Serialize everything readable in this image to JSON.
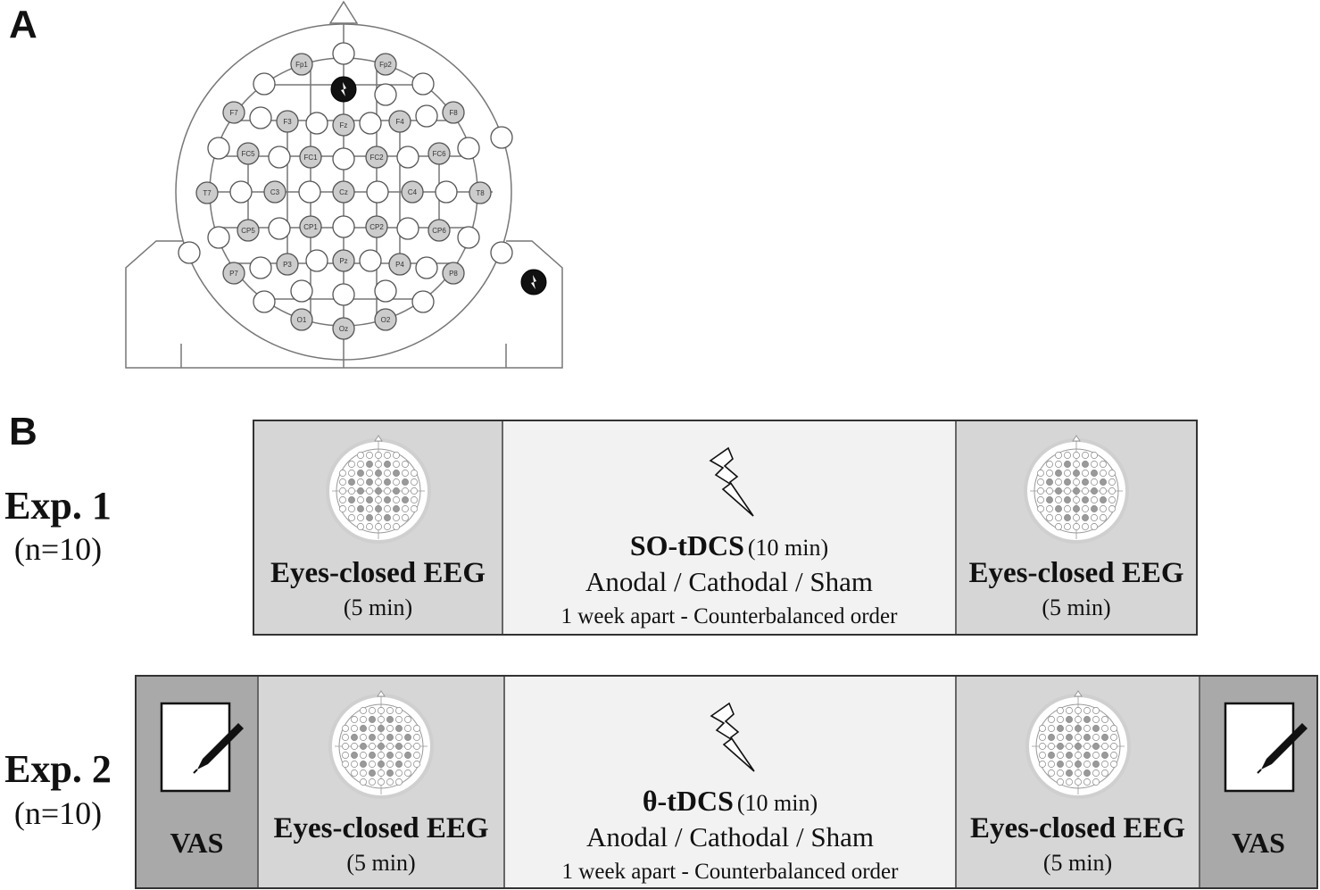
{
  "panel_a": {
    "label": "A",
    "electrodes": [
      "Fp1",
      "Fp2",
      "F7",
      "F3",
      "Fz",
      "F4",
      "F8",
      "FC5",
      "FC1",
      "FC2",
      "FC6",
      "T7",
      "C3",
      "Cz",
      "C4",
      "T8",
      "CP5",
      "CP1",
      "CP2",
      "CP6",
      "P7",
      "P3",
      "Pz",
      "P4",
      "P8",
      "O1",
      "Oz",
      "O2"
    ]
  },
  "panel_b": {
    "label": "B",
    "experiments": [
      {
        "title": "Exp. 1",
        "n": "(n=10)",
        "pre_eeg": {
          "title": "Eyes-closed EEG",
          "duration": "(5 min)"
        },
        "stim": {
          "name": "SO-tDCS",
          "duration": "(10 min)",
          "conditions": "Anodal / Cathodal / Sham",
          "schedule": "1 week apart - Counterbalanced order"
        },
        "post_eeg": {
          "title": "Eyes-closed EEG",
          "duration": "(5 min)"
        }
      },
      {
        "title": "Exp. 2",
        "n": "(n=10)",
        "pre_vas": "VAS",
        "pre_eeg": {
          "title": "Eyes-closed EEG",
          "duration": "(5 min)"
        },
        "stim": {
          "name": "θ-tDCS",
          "duration": "(10 min)",
          "conditions": "Anodal / Cathodal / Sham",
          "schedule": "1 week apart - Counterbalanced order"
        },
        "post_eeg": {
          "title": "Eyes-closed EEG",
          "duration": "(5 min)"
        },
        "post_vas": "VAS"
      }
    ]
  },
  "icons": {
    "eeg": "eeg-cap-icon",
    "stim": "lightning-bolt-icon",
    "vas": "pen-paper-icon",
    "stim_electrode": "stimulation-electrode-icon"
  },
  "colors": {
    "eeg_block": "#d6d6d6",
    "stim_block": "#f2f2f2",
    "vas_block": "#a9a9a9",
    "electrode_fill": "#cccccc",
    "stim_electrode": "#111111"
  }
}
